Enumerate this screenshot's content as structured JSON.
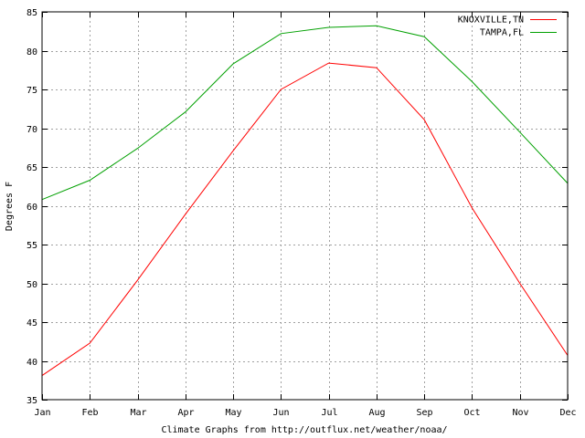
{
  "chart_data": {
    "type": "line",
    "title": "",
    "xlabel": "Climate Graphs from http://outflux.net/weather/noaa/",
    "ylabel": "Degrees F",
    "categories": [
      "Jan",
      "Feb",
      "Mar",
      "Apr",
      "May",
      "Jun",
      "Jul",
      "Aug",
      "Sep",
      "Oct",
      "Nov",
      "Dec"
    ],
    "ylim": [
      35,
      85
    ],
    "yticks": [
      35,
      40,
      45,
      50,
      55,
      60,
      65,
      70,
      75,
      80,
      85
    ],
    "grid": true,
    "legend_position": "top-right",
    "series": [
      {
        "name": "KNOXVILLE,TN",
        "color": "#ff0000",
        "values": [
          38.1,
          42.3,
          50.4,
          58.9,
          67.1,
          75.0,
          78.4,
          77.8,
          71.1,
          59.7,
          50.0,
          40.7
        ]
      },
      {
        "name": "TAMPA,FL",
        "color": "#00a000",
        "values": [
          60.8,
          63.3,
          67.4,
          72.1,
          78.3,
          82.2,
          83.0,
          83.2,
          81.8,
          76.0,
          69.5,
          62.9
        ]
      }
    ]
  }
}
